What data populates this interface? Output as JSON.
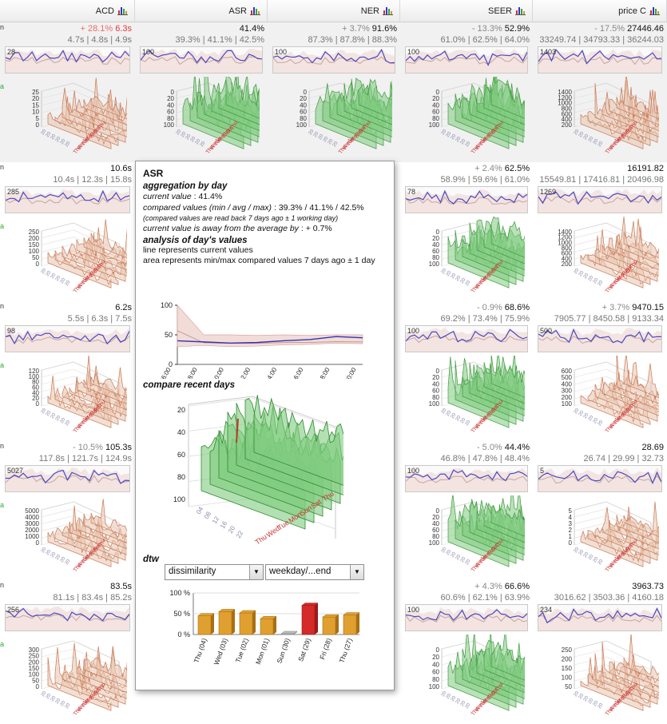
{
  "columns": [
    {
      "title": "ACD",
      "icon": "bar-chart-icon"
    },
    {
      "title": "ASR",
      "icon": "bar-chart-icon"
    },
    {
      "title": "NER",
      "icon": "bar-chart-icon"
    },
    {
      "title": "SEER",
      "icon": "bar-chart-icon"
    },
    {
      "title": "price C",
      "icon": "bar-chart-icon"
    }
  ],
  "rows": [
    {
      "cells": [
        {
          "delta": "+ 28.1%",
          "value": "6.3s",
          "cmp": "4.7s | 4.8s | 4.9s",
          "spark": "28",
          "neg": true,
          "theme": "orange",
          "ticks": [
            "25",
            "20",
            "15",
            "10",
            "5",
            "0"
          ]
        },
        {
          "delta": "",
          "value": "41.4%",
          "cmp": "39.3% | 41.1% | 42.5%",
          "spark": "100",
          "theme": "green",
          "ticks": [
            "0",
            "20",
            "40",
            "60",
            "80",
            "100"
          ]
        },
        {
          "delta": "+ 3.7%",
          "value": "91.6%",
          "cmp": "87.3% | 87.8% | 88.3%",
          "spark": "100",
          "theme": "green",
          "ticks": [
            "0",
            "20",
            "40",
            "60",
            "80",
            "100"
          ]
        },
        {
          "delta": "- 13.3%",
          "value": "52.9%",
          "cmp": "61.0% | 62.5% | 64.0%",
          "spark": "100",
          "theme": "green",
          "ticks": [
            "0",
            "20",
            "40",
            "60",
            "80",
            "100"
          ]
        },
        {
          "delta": "- 17.5%",
          "value": "27446.46",
          "cmp": "33249.74 | 34793.33 | 36244.03",
          "spark": "1403",
          "theme": "orange",
          "ticks": [
            "1400",
            "1200",
            "1000",
            "800",
            "600",
            "400",
            "200"
          ]
        }
      ]
    },
    {
      "cells": [
        {
          "delta": "",
          "value": "10.6s",
          "cmp": "10.4s | 12.3s | 15.8s",
          "spark": "285",
          "theme": "orange",
          "ticks": [
            "250",
            "200",
            "150",
            "100",
            "50",
            "0"
          ]
        },
        {
          "delta": "",
          "value": "",
          "cmp": "",
          "spark": "",
          "theme": "green",
          "ticks": []
        },
        {
          "delta": "",
          "value": "",
          "cmp": "",
          "spark": "",
          "theme": "green",
          "ticks": []
        },
        {
          "delta": "+ 2.4%",
          "value": "62.5%",
          "cmp": "58.9% | 59.6% | 61.0%",
          "spark": "78",
          "theme": "green",
          "ticks": [
            "0",
            "20",
            "40",
            "60",
            "80",
            "100"
          ]
        },
        {
          "delta": "",
          "value": "16191.82",
          "cmp": "15549.81 | 17416.81 | 20496.98",
          "spark": "1269",
          "theme": "orange",
          "ticks": [
            "1400",
            "1200",
            "1000",
            "800",
            "600",
            "400",
            "200"
          ]
        }
      ]
    },
    {
      "cells": [
        {
          "delta": "",
          "value": "6.2s",
          "cmp": "5.5s | 6.3s | 7.5s",
          "spark": "98",
          "theme": "orange",
          "ticks": [
            "120",
            "100",
            "80",
            "60",
            "40",
            "20",
            "0"
          ]
        },
        {
          "delta": "",
          "value": "",
          "cmp": "",
          "spark": "",
          "theme": "green",
          "ticks": []
        },
        {
          "delta": "",
          "value": "",
          "cmp": "",
          "spark": "",
          "theme": "green",
          "ticks": []
        },
        {
          "delta": "- 0.9%",
          "value": "68.6%",
          "cmp": "69.2% | 73.4% | 75.9%",
          "spark": "100",
          "theme": "green",
          "ticks": [
            "0",
            "20",
            "40",
            "60",
            "80",
            "100"
          ]
        },
        {
          "delta": "+ 3.7%",
          "value": "9470.15",
          "cmp": "7905.77 | 8450.58 | 9133.34",
          "spark": "500",
          "theme": "orange",
          "ticks": [
            "600",
            "500",
            "400",
            "300",
            "200",
            "100"
          ]
        }
      ]
    },
    {
      "cells": [
        {
          "delta": "- 10.5%",
          "value": "105.3s",
          "cmp": "117.8s | 121.7s | 124.9s",
          "spark": "5027",
          "theme": "orange",
          "ticks": [
            "5000",
            "4000",
            "3000",
            "2000",
            "1000",
            "0"
          ]
        },
        {
          "delta": "",
          "value": "",
          "cmp": "",
          "spark": "",
          "theme": "green",
          "ticks": []
        },
        {
          "delta": "",
          "value": "",
          "cmp": "",
          "spark": "",
          "theme": "green",
          "ticks": []
        },
        {
          "delta": "- 5.0%",
          "value": "44.4%",
          "cmp": "46.8% | 47.8% | 48.4%",
          "spark": "100",
          "theme": "green",
          "ticks": [
            "0",
            "20",
            "40",
            "60",
            "80",
            "100"
          ]
        },
        {
          "delta": "",
          "value": "28.69",
          "cmp": "26.74 | 29.99 | 32.73",
          "spark": "5",
          "theme": "orange",
          "ticks": [
            "5",
            "4",
            "3",
            "2",
            "1",
            "0"
          ]
        }
      ]
    },
    {
      "cells": [
        {
          "delta": "",
          "value": "83.5s",
          "cmp": "81.1s | 83.4s | 85.2s",
          "spark": "256",
          "theme": "orange",
          "ticks": [
            "300",
            "250",
            "200",
            "150",
            "100",
            "50",
            "0"
          ]
        },
        {
          "delta": "",
          "value": "",
          "cmp": "",
          "spark": "",
          "theme": "green",
          "ticks": []
        },
        {
          "delta": "",
          "value": "",
          "cmp": "",
          "spark": "",
          "theme": "green",
          "ticks": []
        },
        {
          "delta": "+ 4.3%",
          "value": "66.6%",
          "cmp": "60.6% | 62.1% | 63.9%",
          "spark": "100",
          "theme": "green",
          "ticks": [
            "0",
            "20",
            "40",
            "60",
            "80",
            "100"
          ]
        },
        {
          "delta": "",
          "value": "3963.73",
          "cmp": "3016.62 | 3503.36 | 4160.18",
          "spark": "234",
          "theme": "orange",
          "ticks": [
            "250",
            "200",
            "150",
            "100",
            "50"
          ]
        }
      ]
    }
  ],
  "popup": {
    "title": "ASR",
    "agg_heading": "aggregation by day",
    "current_label": "current value",
    "current_value": ": 41.4%",
    "compared_label": "compared values (min / avg / max)",
    "compared_value": ": 39.3% / 41.1% / 42.5%",
    "compared_note": "(compared values are read back 7 days ago ± 1 working day)",
    "away_label": "current value is away from the average by",
    "away_value": ": + 0.7%",
    "analysis_heading": "analysis of day's values",
    "line_note": "line represents current values",
    "area_note": "area represents min/max compared values 7 days ago ± 1 day",
    "compare_heading": "compare recent days",
    "dtw_heading": "dtw",
    "select1": "dissimilarity",
    "select2": "weekday/...end",
    "chart_yticks": [
      "100 %",
      "50 %",
      "0 %"
    ],
    "recent_days": [
      "Thu",
      "Sat",
      "Sun",
      "Mon",
      "Tue",
      "Wed",
      "Thu"
    ],
    "recent_hours": [
      "04",
      "08",
      "12",
      "16",
      "20",
      "22"
    ],
    "recent_ticks": [
      "20",
      "40",
      "60",
      "80",
      "100"
    ]
  },
  "chart_data": [
    {
      "type": "line",
      "title": "analysis of day's values",
      "x": [
        "06:00",
        "08:00",
        "10:00",
        "12:00",
        "14:00",
        "16:00",
        "18:00",
        "20:00"
      ],
      "ylim": [
        0,
        100
      ],
      "yticks": [
        "0",
        "50",
        "100"
      ],
      "series": [
        {
          "name": "current",
          "values": [
            40,
            38,
            36,
            37,
            40,
            42,
            47,
            45
          ]
        },
        {
          "name": "min",
          "values": [
            30,
            32,
            30,
            31,
            33,
            34,
            36,
            35
          ]
        },
        {
          "name": "max",
          "values": [
            100,
            50,
            50,
            49,
            50,
            49,
            50,
            50
          ]
        }
      ]
    },
    {
      "type": "bar",
      "title": "dtw",
      "categories": [
        "Thu (04)",
        "Wed (03)",
        "Tue (02)",
        "Mon (01)",
        "Sun (30)",
        "Sat (29)",
        "Fri (28)",
        "Thu (27)"
      ],
      "values": [
        45,
        55,
        52,
        38,
        2,
        70,
        42,
        47
      ],
      "highlight": [
        false,
        false,
        false,
        false,
        false,
        true,
        false,
        false
      ],
      "ylim": [
        0,
        100
      ]
    }
  ],
  "colors": {
    "green": "#5cb85c",
    "orange": "#d98a5a",
    "blue": "#4444bb",
    "red": "#e23a3a",
    "gold": "#e0a030"
  }
}
